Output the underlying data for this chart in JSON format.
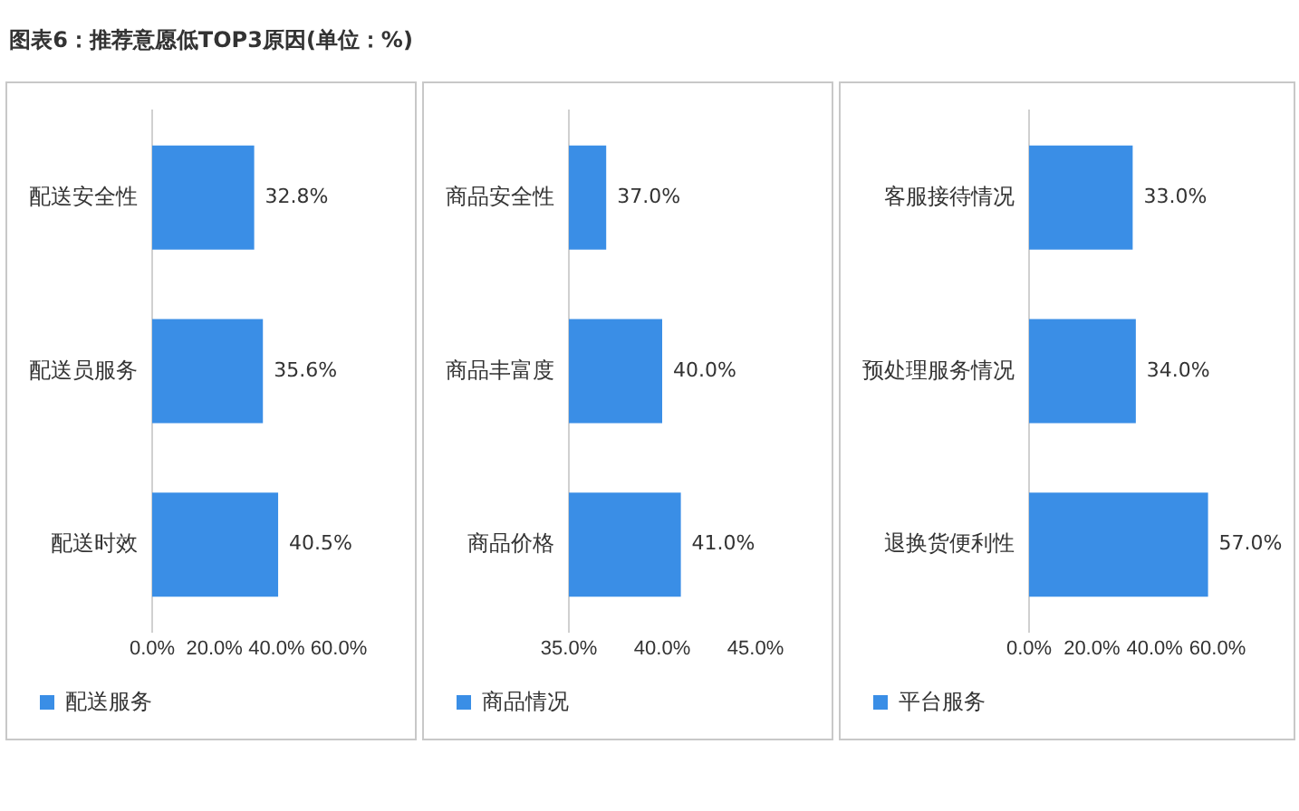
{
  "chart_data": [
    {
      "type": "bar",
      "title": "图表6：推荐意愿低TOP3原因(单位：%)",
      "orientation": "horizontal",
      "categories": [
        "配送安全性",
        "配送员服务",
        "配送时效"
      ],
      "series": [
        {
          "name": "配送服务",
          "color": "#3a8ee6",
          "values": [
            32.8,
            35.6,
            40.5
          ],
          "value_labels": [
            "32.8%",
            "35.6%",
            "40.5%"
          ]
        }
      ],
      "xlim": [
        0,
        60
      ],
      "xticks": [
        {
          "value": 0,
          "label": "0.0%"
        },
        {
          "value": 20,
          "label": "20.0%"
        },
        {
          "value": 40,
          "label": "40.0%"
        },
        {
          "value": 60,
          "label": "60.0%"
        }
      ],
      "grid": false,
      "legend": "bottom"
    },
    {
      "type": "bar",
      "orientation": "horizontal",
      "categories": [
        "商品安全性",
        "商品丰富度",
        "商品价格"
      ],
      "series": [
        {
          "name": "商品情况",
          "color": "#3a8ee6",
          "values": [
            37.0,
            40.0,
            41.0
          ],
          "value_labels": [
            "37.0%",
            "40.0%",
            "41.0%"
          ]
        }
      ],
      "xlim": [
        35,
        45
      ],
      "xticks": [
        {
          "value": 35,
          "label": "35.0%"
        },
        {
          "value": 40,
          "label": "40.0%"
        },
        {
          "value": 45,
          "label": "45.0%"
        }
      ],
      "grid": false,
      "legend": "bottom"
    },
    {
      "type": "bar",
      "orientation": "horizontal",
      "categories": [
        "客服接待情况",
        "预处理服务情况",
        "退换货便利性"
      ],
      "series": [
        {
          "name": "平台服务",
          "color": "#3a8ee6",
          "values": [
            33.0,
            34.0,
            57.0
          ],
          "value_labels": [
            "33.0%",
            "34.0%",
            "57.0%"
          ]
        }
      ],
      "xlim": [
        0,
        60
      ],
      "xticks": [
        {
          "value": 0,
          "label": "0.0%"
        },
        {
          "value": 20,
          "label": "20.0%"
        },
        {
          "value": 40,
          "label": "40.0%"
        },
        {
          "value": 60,
          "label": "60.0%"
        }
      ],
      "grid": false,
      "legend": "bottom"
    }
  ]
}
